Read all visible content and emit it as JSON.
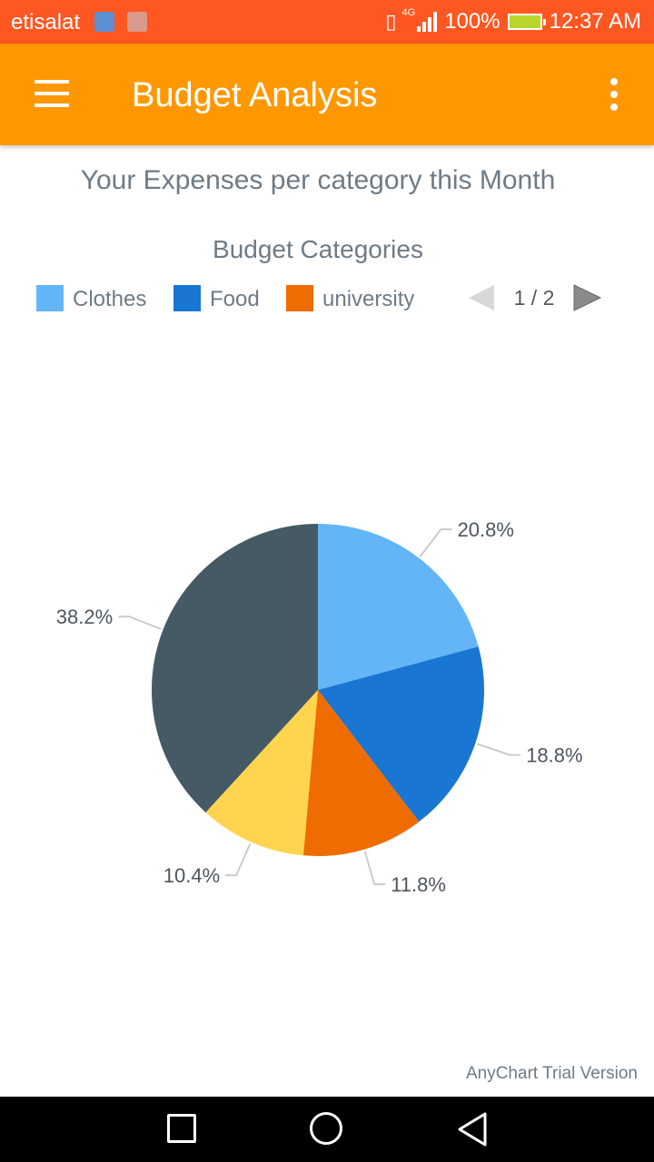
{
  "status_bar": {
    "carrier": "etisalat",
    "network": "4G",
    "battery": "100%",
    "time": "12:37 AM",
    "background_color": "#ff5722"
  },
  "app_bar": {
    "title": "Budget Analysis",
    "background_color": "#ff9800",
    "menu_icon": "hamburger-menu-icon",
    "overflow_icon": "more-vertical-icon"
  },
  "subtitle": "Your Expenses per category this Month",
  "legend": {
    "page_indicator": "1 / 2",
    "prev_icon": "triangle-left-icon",
    "next_icon": "triangle-right-icon"
  },
  "chart_data": {
    "type": "pie",
    "title": "Budget Categories",
    "legend_position": "top",
    "slices": [
      {
        "name": "Clothes",
        "value": 20.8,
        "label": "20.8%",
        "color": "#64b5f6"
      },
      {
        "name": "Food",
        "value": 18.8,
        "label": "18.8%",
        "color": "#1976d2"
      },
      {
        "name": "university",
        "value": 11.8,
        "label": "11.8%",
        "color": "#ef6c00"
      },
      {
        "name": "",
        "value": 10.4,
        "label": "10.4%",
        "color": "#ffd54f"
      },
      {
        "name": "",
        "value": 38.2,
        "label": "38.2%",
        "color": "#455a64"
      }
    ]
  },
  "watermark": "AnyChart Trial Version",
  "nav_bar": {
    "back_icon": "square-icon",
    "home_icon": "circle-icon",
    "recents_icon": "triangle-back-icon"
  }
}
